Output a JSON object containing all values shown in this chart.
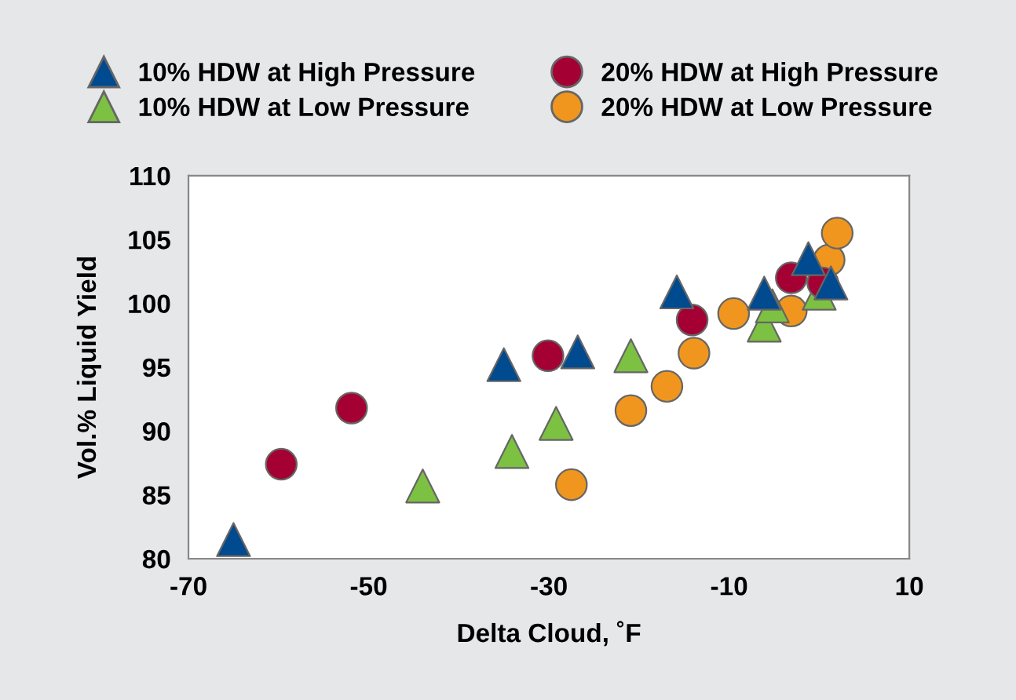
{
  "chart_data": {
    "type": "scatter",
    "xlabel": "Delta Cloud, ˚F",
    "ylabel": "Vol.% Liquid Yield",
    "xlim": [
      -70,
      10
    ],
    "xticks": [
      -70,
      -50,
      -30,
      -10,
      10
    ],
    "ylim": [
      80,
      110
    ],
    "yticks": [
      80,
      85,
      90,
      95,
      100,
      105,
      110
    ],
    "grid": false,
    "legend": "top",
    "series": [
      {
        "name": "10% HDW at High Pressure",
        "color": "#004a8f",
        "marker": "triangle",
        "x": [
          -65,
          -35,
          -26.8,
          -15.8,
          -6.1,
          -1.2,
          1.3
        ],
        "values": [
          81.5,
          95.2,
          96.2,
          100.9,
          100.8,
          103.5,
          101.6
        ]
      },
      {
        "name": "20% HDW at High Pressure",
        "color": "#a50034",
        "marker": "circle",
        "x": [
          -59.7,
          -51.9,
          -30.1,
          -14.1,
          -3.1,
          0.4
        ],
        "values": [
          87.4,
          91.8,
          95.9,
          98.7,
          102.0,
          101.6
        ]
      },
      {
        "name": "10% HDW at Low Pressure",
        "color": "#7dc142",
        "marker": "triangle",
        "x": [
          -44,
          -34.1,
          -29.2,
          -20.9,
          -6.1,
          -5.2,
          0
        ],
        "values": [
          85.7,
          88.4,
          90.6,
          95.9,
          98.3,
          99.8,
          100.8
        ]
      },
      {
        "name": "20% HDW at Low Pressure",
        "color": "#f0961e",
        "marker": "circle",
        "x": [
          -27.5,
          -20.9,
          -16.9,
          -13.9,
          -9.5,
          -3.1,
          1.1,
          2.0
        ],
        "values": [
          85.8,
          91.6,
          93.5,
          96.1,
          99.2,
          99.4,
          103.4,
          105.5
        ]
      }
    ]
  }
}
